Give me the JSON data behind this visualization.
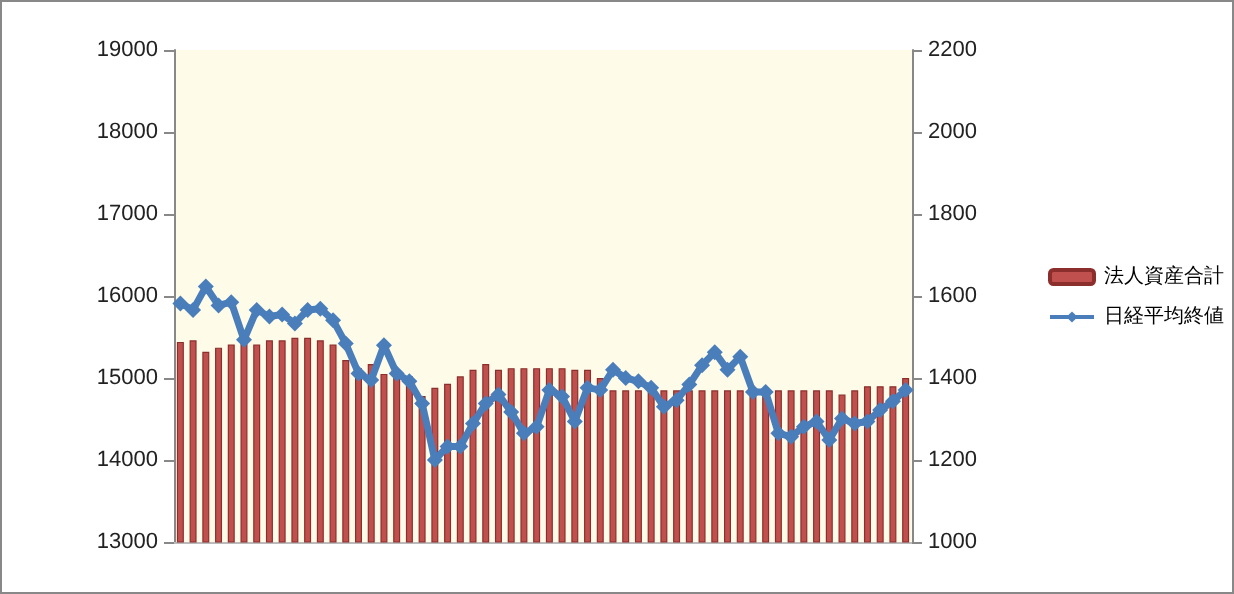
{
  "chart_data": {
    "type": "bar",
    "categories": [
      null,
      null,
      null,
      null,
      null,
      null,
      null,
      null,
      null,
      null,
      null,
      null,
      null,
      null,
      null,
      null,
      null,
      null,
      null,
      null,
      null,
      null,
      null,
      null,
      null,
      null,
      null,
      null,
      null,
      null,
      null,
      null,
      null,
      null,
      null,
      null,
      null,
      null,
      null,
      null,
      null,
      null,
      null,
      null,
      null,
      null,
      null,
      null,
      null,
      null,
      null,
      null,
      null,
      null,
      null,
      null,
      null,
      null
    ],
    "series": [
      {
        "name": "法人資産合計",
        "color": "#c0504d",
        "values": [
          15440,
          15460,
          15320,
          15370,
          15410,
          15440,
          15410,
          15460,
          15460,
          15490,
          15490,
          15460,
          15410,
          15220,
          15120,
          15170,
          15050,
          15050,
          15020,
          14780,
          14880,
          14930,
          15020,
          15100,
          15170,
          15100,
          15120,
          15120,
          15120,
          15120,
          15120,
          15100,
          15100,
          15000,
          14850,
          14850,
          14850,
          14850,
          14850,
          14850,
          14850,
          14850,
          14850,
          14850,
          14850,
          14850,
          14850,
          14850,
          14850,
          14850,
          14850,
          14850,
          14800,
          14850,
          14900,
          14900,
          14900,
          15000
        ]
      },
      {
        "name": "日経平均終値",
        "type": "line",
        "axis": "y2",
        "color": "#4a7ebb",
        "marker": "diamond",
        "values": [
          1582,
          1566,
          1623,
          1577,
          1585,
          1493,
          1566,
          1550,
          1555,
          1533,
          1566,
          1569,
          1541,
          1484,
          1411,
          1395,
          1480,
          1411,
          1392,
          1338,
          1200,
          1233,
          1233,
          1289,
          1338,
          1360,
          1317,
          1265,
          1281,
          1371,
          1355,
          1294,
          1376,
          1371,
          1420,
          1400,
          1392,
          1376,
          1330,
          1346,
          1384,
          1431,
          1463,
          1420,
          1452,
          1366,
          1366,
          1265,
          1257,
          1281,
          1294,
          1249,
          1301,
          1289,
          1294,
          1322,
          1343,
          1371
        ]
      }
    ],
    "ylim": [
      13000,
      19000
    ],
    "yticks": [
      13000,
      14000,
      15000,
      16000,
      17000,
      18000,
      19000
    ],
    "y2lim": [
      1000,
      2200
    ],
    "y2ticks": [
      1000,
      1200,
      1400,
      1600,
      1800,
      2000,
      2200
    ],
    "tick_labels": "y",
    "grid": false,
    "legend": "right"
  }
}
